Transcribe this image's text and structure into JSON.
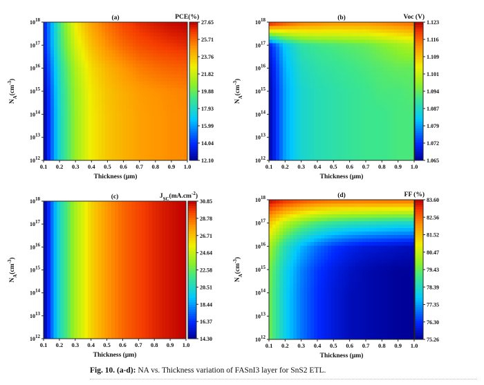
{
  "figure_label": "Fig. 10.",
  "caption_tag": "(a-d)",
  "caption_text": "NA vs. Thickness variation of FASnI3 layer for SnS2 ETL.",
  "chart_data": [
    {
      "type": "heatmap",
      "panel": "(a)",
      "title": "PCE(%)",
      "xlabel": "Thickness (µm)",
      "ylabel": "NA(cm-3)",
      "x_ticks": [
        "0.1",
        "0.2",
        "0.3",
        "0.4",
        "0.5",
        "0.6",
        "0.7",
        "0.8",
        "0.9",
        "1.0"
      ],
      "y_ticks": [
        "10^12",
        "10^13",
        "10^14",
        "10^15",
        "10^16",
        "10^17",
        "10^18"
      ],
      "x_range": [
        0.1,
        1.0
      ],
      "y_range_log10": [
        12,
        18
      ],
      "colorbar_ticks": [
        "27.65",
        "25.71",
        "23.76",
        "21.82",
        "19.88",
        "17.93",
        "15.99",
        "14.04",
        "12.10"
      ],
      "colorbar_range": [
        12.1,
        27.65
      ],
      "x": [
        0.1,
        0.2,
        0.3,
        0.4,
        0.5,
        0.6,
        0.7,
        0.8,
        0.9,
        1.0
      ],
      "y_log10": [
        12,
        13,
        14,
        15,
        16,
        17,
        18
      ],
      "z": [
        [
          12.1,
          17.9,
          20.9,
          22.8,
          23.7,
          24.2,
          24.6,
          24.8,
          25.0,
          25.1
        ],
        [
          12.1,
          17.9,
          20.9,
          22.8,
          23.7,
          24.2,
          24.6,
          24.8,
          25.0,
          25.1
        ],
        [
          12.1,
          17.9,
          20.9,
          22.8,
          23.7,
          24.2,
          24.6,
          24.8,
          25.0,
          25.1
        ],
        [
          12.3,
          18.0,
          21.0,
          22.9,
          23.8,
          24.3,
          24.7,
          24.9,
          25.1,
          25.2
        ],
        [
          12.8,
          18.3,
          21.3,
          23.2,
          24.1,
          24.8,
          25.3,
          25.6,
          25.8,
          25.9
        ],
        [
          13.5,
          18.9,
          22.1,
          23.9,
          25.0,
          25.7,
          26.2,
          26.5,
          26.7,
          26.9
        ],
        [
          13.5,
          19.2,
          22.8,
          24.6,
          25.6,
          26.4,
          26.9,
          27.2,
          27.5,
          27.65
        ]
      ]
    },
    {
      "type": "heatmap",
      "panel": "(b)",
      "title": "Voc (V)",
      "xlabel": "Thickness (µm)",
      "ylabel": "NA(cm-3)",
      "x_ticks": [
        "0.1",
        "0.2",
        "0.3",
        "0.4",
        "0.5",
        "0.6",
        "0.7",
        "0.8",
        "0.9",
        "1.0"
      ],
      "y_ticks": [
        "10^12",
        "10^13",
        "10^14",
        "10^15",
        "10^16",
        "10^17",
        "10^18"
      ],
      "x_range": [
        0.1,
        1.0
      ],
      "y_range_log10": [
        12,
        18
      ],
      "colorbar_ticks": [
        "1.123",
        "1.116",
        "1.109",
        "1.101",
        "1.094",
        "1.087",
        "1.079",
        "1.072",
        "1.065"
      ],
      "colorbar_range": [
        1.065,
        1.123
      ],
      "x": [
        0.1,
        0.2,
        0.3,
        0.4,
        0.5,
        0.6,
        0.7,
        0.8,
        0.9,
        1.0
      ],
      "y_log10": [
        12,
        13,
        14,
        15,
        16,
        17,
        18
      ],
      "z": [
        [
          1.066,
          1.08,
          1.086,
          1.088,
          1.089,
          1.09,
          1.091,
          1.091,
          1.092,
          1.092
        ],
        [
          1.066,
          1.08,
          1.086,
          1.088,
          1.089,
          1.09,
          1.091,
          1.091,
          1.092,
          1.092
        ],
        [
          1.066,
          1.08,
          1.086,
          1.088,
          1.089,
          1.09,
          1.091,
          1.091,
          1.092,
          1.092
        ],
        [
          1.066,
          1.08,
          1.086,
          1.088,
          1.089,
          1.09,
          1.091,
          1.092,
          1.092,
          1.093
        ],
        [
          1.067,
          1.081,
          1.087,
          1.089,
          1.09,
          1.091,
          1.092,
          1.093,
          1.094,
          1.094
        ],
        [
          1.07,
          1.083,
          1.089,
          1.091,
          1.092,
          1.093,
          1.094,
          1.096,
          1.098,
          1.1
        ],
        [
          1.123,
          1.118,
          1.115,
          1.114,
          1.113,
          1.113,
          1.113,
          1.114,
          1.115,
          1.116
        ]
      ]
    },
    {
      "type": "heatmap",
      "panel": "(c)",
      "title": "JSC(mA.cm-2)",
      "xlabel": "Thickness (µm)",
      "ylabel": "NA(cm-3)",
      "x_ticks": [
        "0.1",
        "0.2",
        "0.3",
        "0.4",
        "0.5",
        "0.6",
        "0.7",
        "0.8",
        "0.9",
        "1.0"
      ],
      "y_ticks": [
        "10^12",
        "10^13",
        "10^14",
        "10^15",
        "10^16",
        "10^17",
        "10^18"
      ],
      "x_range": [
        0.1,
        1.0
      ],
      "y_range_log10": [
        12,
        18
      ],
      "colorbar_ticks": [
        "30.85",
        "28.78",
        "26.71",
        "24.64",
        "22.58",
        "20.51",
        "18.44",
        "16.37",
        "14.30"
      ],
      "colorbar_range": [
        14.3,
        30.85
      ],
      "x": [
        0.1,
        0.2,
        0.3,
        0.4,
        0.5,
        0.6,
        0.7,
        0.8,
        0.9,
        1.0
      ],
      "y_log10": [
        12,
        13,
        14,
        15,
        16,
        17,
        18
      ],
      "z": [
        [
          14.3,
          20.5,
          24.0,
          26.3,
          27.8,
          28.8,
          29.5,
          30.1,
          30.5,
          30.85
        ],
        [
          14.3,
          20.5,
          24.0,
          26.3,
          27.8,
          28.8,
          29.5,
          30.1,
          30.5,
          30.85
        ],
        [
          14.3,
          20.5,
          24.0,
          26.3,
          27.8,
          28.8,
          29.5,
          30.1,
          30.5,
          30.85
        ],
        [
          14.3,
          20.5,
          24.0,
          26.3,
          27.8,
          28.8,
          29.5,
          30.1,
          30.5,
          30.85
        ],
        [
          14.3,
          20.5,
          24.0,
          26.3,
          27.8,
          28.8,
          29.5,
          30.1,
          30.5,
          30.85
        ],
        [
          14.3,
          20.5,
          24.0,
          26.3,
          27.8,
          28.8,
          29.5,
          30.1,
          30.5,
          30.85
        ],
        [
          14.3,
          20.5,
          24.0,
          26.3,
          27.8,
          28.8,
          29.5,
          30.1,
          30.5,
          30.85
        ]
      ]
    },
    {
      "type": "heatmap",
      "panel": "(d)",
      "title": "FF (%)",
      "xlabel": "Thickness (µm)",
      "ylabel": "NA(cm-3)",
      "x_ticks": [
        "0.1",
        "0.2",
        "0.3",
        "0.4",
        "0.5",
        "0.6",
        "0.7",
        "0.8",
        "0.9",
        "1.0"
      ],
      "y_ticks": [
        "10^12",
        "10^13",
        "10^14",
        "10^15",
        "10^16",
        "10^17",
        "10^18"
      ],
      "x_range": [
        0.1,
        1.0
      ],
      "y_range_log10": [
        12,
        18
      ],
      "colorbar_ticks": [
        "83.60",
        "82.56",
        "81.52",
        "80.47",
        "79.43",
        "78.39",
        "77.35",
        "76.30",
        "75.26"
      ],
      "colorbar_range": [
        75.26,
        83.6
      ],
      "x": [
        0.1,
        0.2,
        0.3,
        0.4,
        0.5,
        0.6,
        0.7,
        0.8,
        0.9,
        1.0
      ],
      "y_log10": [
        12,
        13,
        14,
        15,
        16,
        17,
        18
      ],
      "z": [
        [
          79.6,
          78.0,
          77.0,
          76.3,
          75.9,
          75.6,
          75.5,
          75.4,
          75.3,
          75.26
        ],
        [
          79.6,
          78.0,
          77.0,
          76.3,
          75.9,
          75.6,
          75.5,
          75.4,
          75.3,
          75.26
        ],
        [
          79.6,
          78.0,
          77.0,
          76.3,
          75.9,
          75.6,
          75.5,
          75.4,
          75.3,
          75.26
        ],
        [
          79.7,
          78.1,
          77.1,
          76.4,
          76.0,
          75.7,
          75.5,
          75.4,
          75.3,
          75.3
        ],
        [
          80.2,
          78.6,
          77.6,
          76.9,
          76.4,
          76.1,
          75.9,
          75.8,
          75.7,
          75.6
        ],
        [
          81.5,
          80.3,
          79.6,
          79.1,
          78.8,
          78.6,
          78.5,
          78.4,
          78.3,
          78.3
        ],
        [
          83.6,
          83.2,
          82.9,
          82.7,
          82.6,
          82.6,
          82.6,
          82.6,
          82.6,
          82.6
        ]
      ]
    }
  ]
}
